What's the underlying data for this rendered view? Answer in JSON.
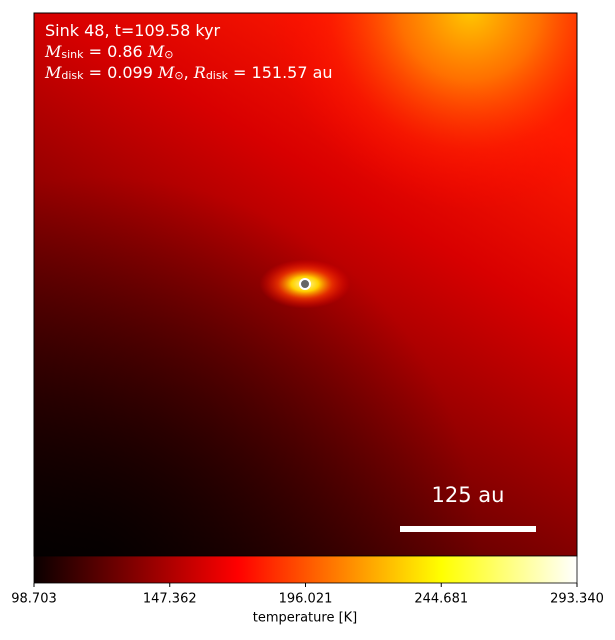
{
  "chart_data": {
    "type": "colormap-image",
    "annotation": [
      [
        {
          "text": "Sink 48, t=109.58 kyr"
        }
      ],
      [
        {
          "text": "M",
          "italic": true
        },
        {
          "text": "sink",
          "sub": true
        },
        {
          "text": " = 0.86 "
        },
        {
          "text": "M",
          "italic": true
        },
        {
          "text": "⊙",
          "sub": true
        }
      ],
      [
        {
          "text": "M",
          "italic": true
        },
        {
          "text": "disk",
          "sub": true
        },
        {
          "text": " = 0.099 "
        },
        {
          "text": "M",
          "italic": true
        },
        {
          "text": "⊙",
          "sub": true
        },
        {
          "text": ", "
        },
        {
          "text": "R",
          "italic": true
        },
        {
          "text": "disk",
          "sub": true
        },
        {
          "text": " = 151.57 au"
        }
      ]
    ],
    "scale_bar_label": "125 au",
    "colorbar": {
      "label": "temperature [K]",
      "colormap": "hot",
      "lim": [
        98.703,
        293.34
      ],
      "ticks": [
        98.703,
        147.362,
        196.021,
        244.681,
        {
          "value": 293.34,
          "label": "293.340"
        }
      ]
    }
  }
}
